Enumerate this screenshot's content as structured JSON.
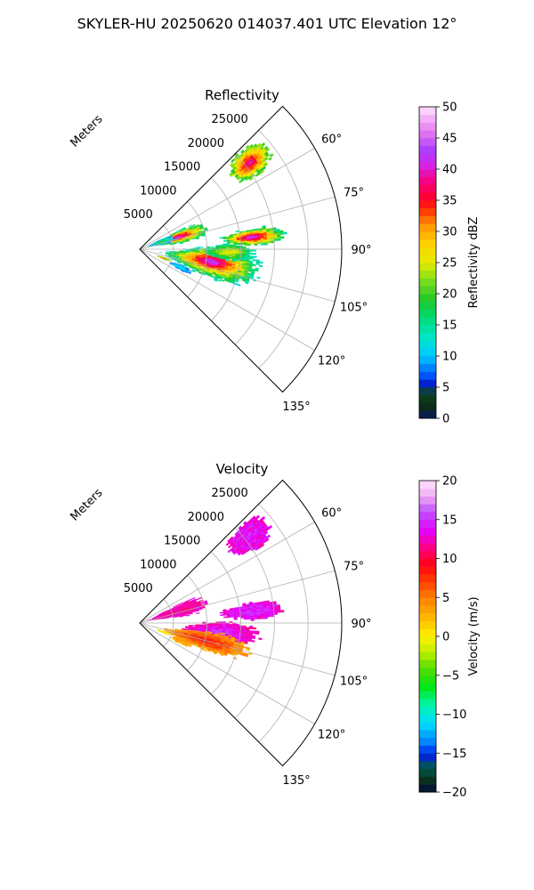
{
  "suptitle": "SKYLER-HU  20250620  014037.401 UTC Elevation 12°",
  "chart_data": [
    {
      "type": "heatmap",
      "projection": "polar-sector",
      "title": "Reflectivity",
      "radial_label": "Meters",
      "radial_ticks": [
        "5000",
        "10000",
        "15000",
        "20000",
        "25000"
      ],
      "radial_tick_values": [
        5000,
        10000,
        15000,
        20000,
        25000
      ],
      "radial_max": 30000,
      "angle_range_deg": [
        45,
        135
      ],
      "angle_ticks": [
        "60°",
        "75°",
        "90°",
        "105°",
        "120°",
        "135°"
      ],
      "angle_tick_values": [
        60,
        75,
        90,
        105,
        120,
        135
      ],
      "grid": true,
      "colorbar": {
        "label": "Reflectivity dBZ",
        "range": [
          0,
          50
        ],
        "ticks": [
          "0",
          "5",
          "10",
          "15",
          "20",
          "25",
          "30",
          "35",
          "40",
          "45",
          "50"
        ],
        "tick_values": [
          0,
          5,
          10,
          15,
          20,
          25,
          30,
          35,
          40,
          45,
          50
        ]
      },
      "cells": [
        {
          "az": 72.5,
          "r": 5700,
          "daz": 10,
          "dr": 5200,
          "peak": 43,
          "edge": 14
        },
        {
          "az": 71.5,
          "r": 3100,
          "daz": 8,
          "dr": 2400,
          "peak": 20,
          "edge": 8
        },
        {
          "az": 51.5,
          "r": 20500,
          "daz": 7,
          "dr": 4200,
          "peak": 40,
          "edge": 18
        },
        {
          "az": 83.5,
          "r": 16600,
          "daz": 5,
          "dr": 5600,
          "peak": 44,
          "edge": 14
        },
        {
          "az": 99.5,
          "r": 10600,
          "daz": 14,
          "dr": 8200,
          "peak": 44,
          "edge": 12
        },
        {
          "az": 91.5,
          "r": 13000,
          "daz": 6,
          "dr": 4200,
          "peak": 28,
          "edge": 14
        },
        {
          "az": 110.5,
          "r": 3600,
          "daz": 3,
          "dr": 1300,
          "peak": 36,
          "edge": 18
        },
        {
          "az": 113.5,
          "r": 6400,
          "daz": 4,
          "dr": 2000,
          "peak": 12,
          "edge": 8
        }
      ]
    },
    {
      "type": "heatmap",
      "projection": "polar-sector",
      "title": "Velocity",
      "radial_label": "Meters",
      "radial_ticks": [
        "5000",
        "10000",
        "15000",
        "20000",
        "25000"
      ],
      "radial_tick_values": [
        5000,
        10000,
        15000,
        20000,
        25000
      ],
      "radial_max": 30000,
      "angle_range_deg": [
        45,
        135
      ],
      "angle_ticks": [
        "60°",
        "75°",
        "90°",
        "105°",
        "120°",
        "135°"
      ],
      "angle_tick_values": [
        60,
        75,
        90,
        105,
        120,
        135
      ],
      "grid": true,
      "colorbar": {
        "label": "Velocity (m/s)",
        "range": [
          -20,
          20
        ],
        "ticks": [
          "−20",
          "−15",
          "−10",
          "−5",
          "0",
          "5",
          "10",
          "15",
          "20"
        ],
        "tick_values": [
          -20,
          -15,
          -10,
          -5,
          0,
          5,
          10,
          15,
          20
        ]
      },
      "cells": [
        {
          "az": 72.5,
          "r": 5700,
          "daz": 10,
          "dr": 5200,
          "peak": 11,
          "edge": 13
        },
        {
          "az": 51.5,
          "r": 20500,
          "daz": 7,
          "dr": 4200,
          "peak": 14,
          "edge": 13
        },
        {
          "az": 83.5,
          "r": 16600,
          "daz": 5,
          "dr": 5600,
          "peak": 15,
          "edge": 13
        },
        {
          "az": 96.5,
          "r": 11800,
          "daz": 9,
          "dr": 6500,
          "peak": 15,
          "edge": 12
        },
        {
          "az": 104.5,
          "r": 9800,
          "daz": 9,
          "dr": 7500,
          "peak": 9,
          "edge": 3
        },
        {
          "az": 110.5,
          "r": 3600,
          "daz": 3,
          "dr": 1300,
          "peak": 2,
          "edge": -1
        },
        {
          "az": 113.5,
          "r": 6400,
          "daz": 4,
          "dr": 2000,
          "peak": 4,
          "edge": 3
        }
      ]
    }
  ]
}
